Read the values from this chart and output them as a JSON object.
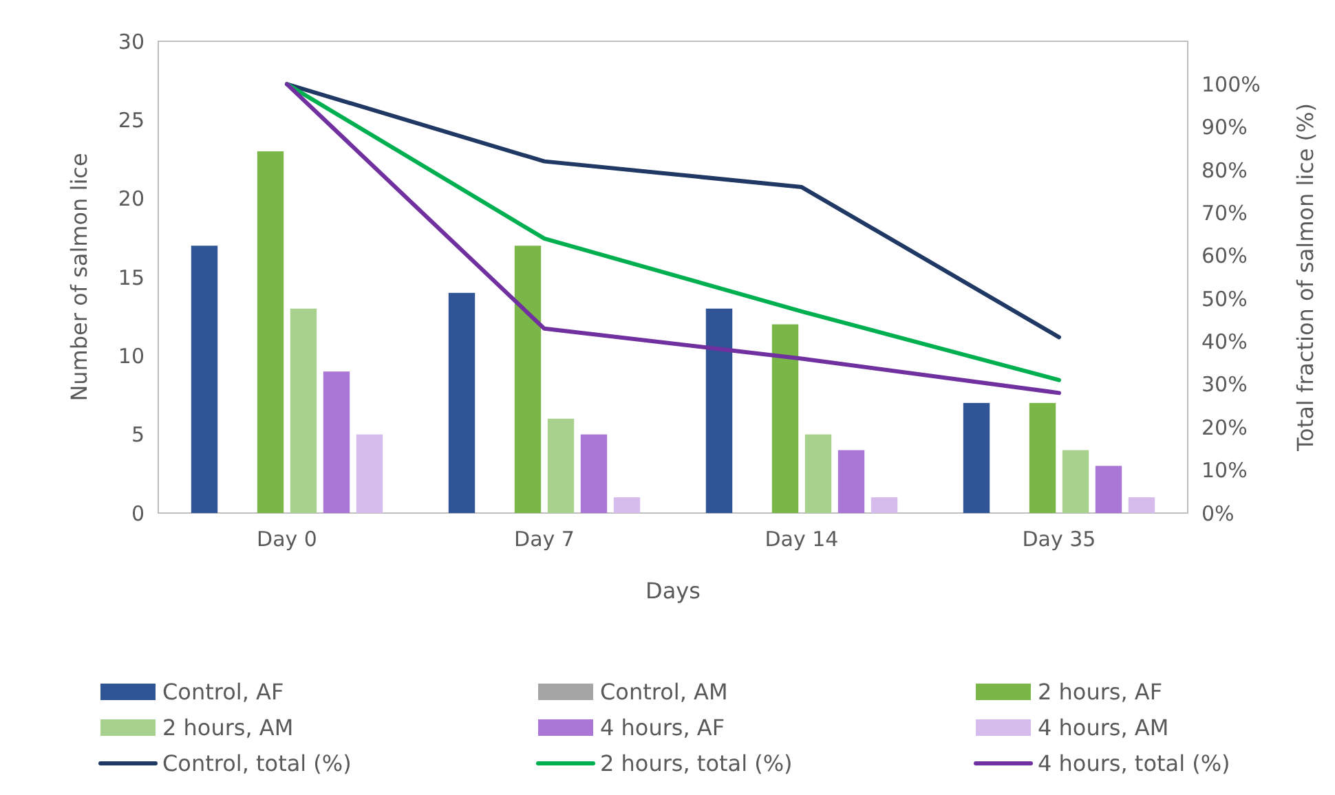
{
  "chart_data": {
    "type": "bar",
    "categories": [
      "Day 0",
      "Day 7",
      "Day 14",
      "Day 35"
    ],
    "xlabel": "Days",
    "ylabel": "Number of salmon lice",
    "y2label": "Total fraction of salmon lice (%)",
    "ylim": [
      0,
      30
    ],
    "yticks": [
      0,
      5,
      10,
      15,
      20,
      25,
      30
    ],
    "y2lim": [
      0,
      110
    ],
    "y2ticks": [
      {
        "value": 0,
        "label": "0%"
      },
      {
        "value": 10,
        "label": "10%"
      },
      {
        "value": 20,
        "label": "20%"
      },
      {
        "value": 30,
        "label": "30%"
      },
      {
        "value": 40,
        "label": "40%"
      },
      {
        "value": 50,
        "label": "50%"
      },
      {
        "value": 60,
        "label": "60%"
      },
      {
        "value": 70,
        "label": "70%"
      },
      {
        "value": 80,
        "label": "80%"
      },
      {
        "value": 90,
        "label": "90%"
      },
      {
        "value": 100,
        "label": "100%"
      }
    ],
    "legend": "bottom",
    "series": [
      {
        "name": "Control, AF",
        "color": "#2f5597",
        "values": [
          17,
          14,
          13,
          7
        ]
      },
      {
        "name": "Control, AM",
        "color": "#a5a5a5",
        "values": [
          0,
          0,
          0,
          0
        ]
      },
      {
        "name": "2 hours, AF",
        "color": "#7ab648",
        "values": [
          23,
          17,
          12,
          7
        ]
      },
      {
        "name": "2 hours, AM",
        "color": "#a9d18e",
        "values": [
          13,
          6,
          5,
          4
        ]
      },
      {
        "name": "4 hours, AF",
        "color": "#ab77d6",
        "values": [
          9,
          5,
          4,
          3
        ]
      },
      {
        "name": "4 hours, AM",
        "color": "#d5bcec",
        "values": [
          5,
          1,
          1,
          1
        ]
      },
      {
        "name": "Control, total (%)",
        "type": "line",
        "axis": "y2",
        "color": "#1f3864",
        "values": [
          100,
          82,
          76,
          41
        ]
      },
      {
        "name": "2 hours, total (%)",
        "type": "line",
        "axis": "y2",
        "color": "#00b050",
        "values": [
          100,
          64,
          47,
          31
        ]
      },
      {
        "name": "4 hours, total (%)",
        "type": "line",
        "axis": "y2",
        "color": "#7030a0",
        "values": [
          100,
          43,
          36,
          28
        ]
      }
    ]
  }
}
